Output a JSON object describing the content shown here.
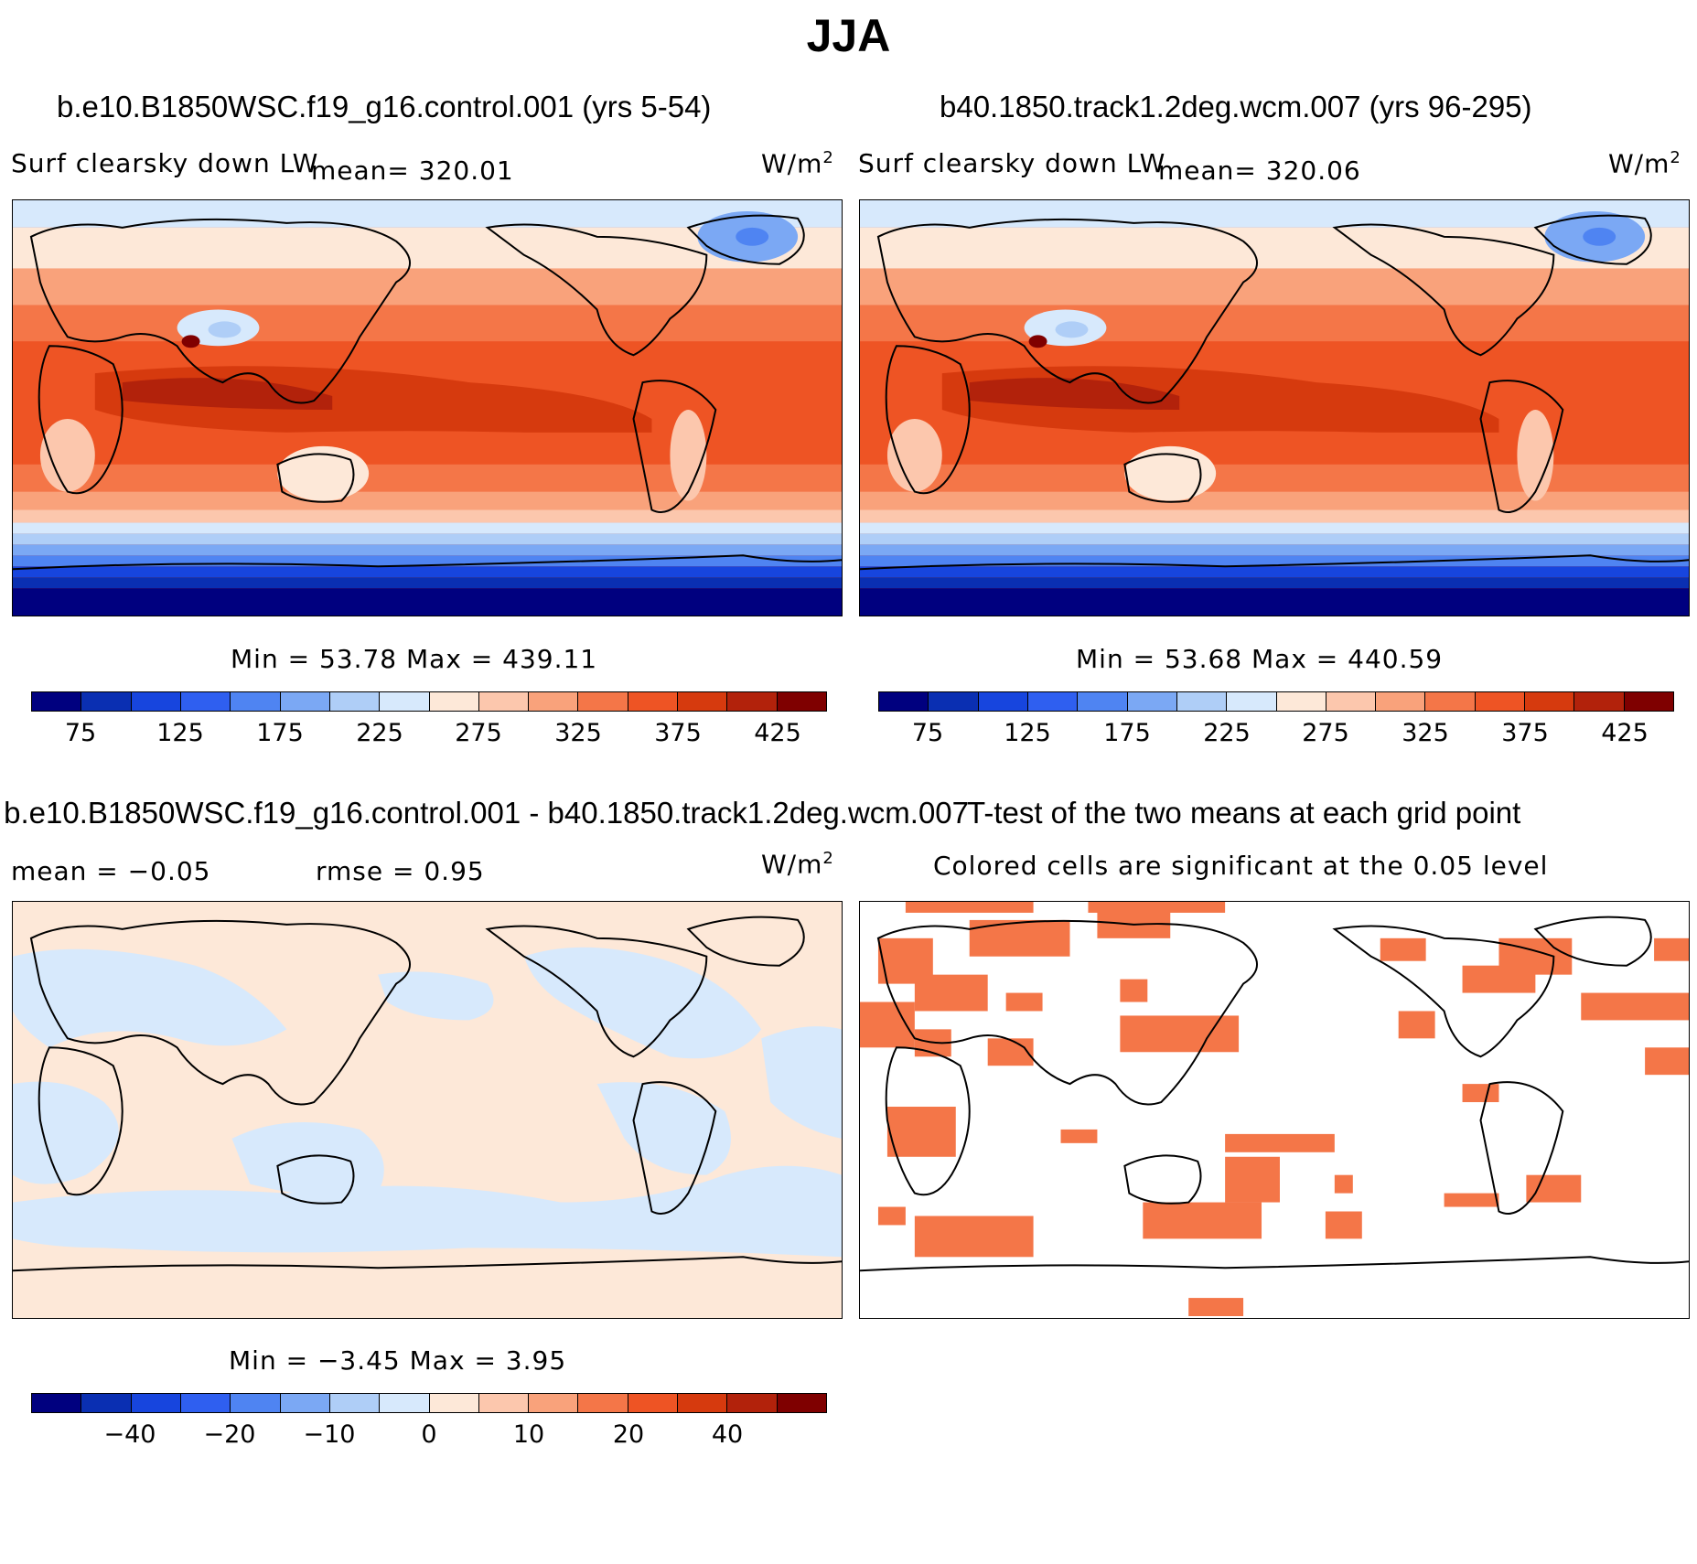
{
  "title": "JJA",
  "panels": {
    "p1": {
      "case": "b.e10.B1850WSC.f19_g16.control.001 (yrs 5-54)",
      "variable": "Surf clearsky down LW",
      "mean_text": "mean= 320.01",
      "units": "W/m",
      "units_sup": "2",
      "minmax": "Min =   53.78 Max = 439.11"
    },
    "p2": {
      "case": "b40.1850.track1.2deg.wcm.007 (yrs 96-295)",
      "variable": "Surf clearsky down LW",
      "mean_text": "mean= 320.06",
      "units": "W/m",
      "units_sup": "2",
      "minmax": "Min =   53.68 Max = 440.59"
    },
    "p3": {
      "case": "b.e10.B1850WSC.f19_g16.control.001 - b40.1850.track1.2deg.wcm.007",
      "mean_text": "mean =   −0.05",
      "rmse_text": "rmse =    0.95",
      "units": "W/m",
      "units_sup": "2",
      "minmax": "Min =  −3.45 Max =     3.95"
    },
    "p4": {
      "title": "T-test of the two means at each grid point",
      "subtitle": "Colored cells are significant at the 0.05 level"
    }
  },
  "colorbars": {
    "colors": [
      "#00007f",
      "#0a2fb2",
      "#1745de",
      "#2f5ff0",
      "#4f84f2",
      "#7ba8f4",
      "#afcef7",
      "#d7e9fc",
      "#fde8d8",
      "#fcc7ad",
      "#f9a27b",
      "#f47648",
      "#ee5424",
      "#d63a0e",
      "#b2220b",
      "#7f0000"
    ],
    "abs_ticks": [
      "75",
      "125",
      "175",
      "225",
      "275",
      "325",
      "375",
      "425"
    ],
    "diff_ticks": [
      "−40",
      "−20",
      "−10",
      "0",
      "10",
      "20",
      "40"
    ]
  }
}
